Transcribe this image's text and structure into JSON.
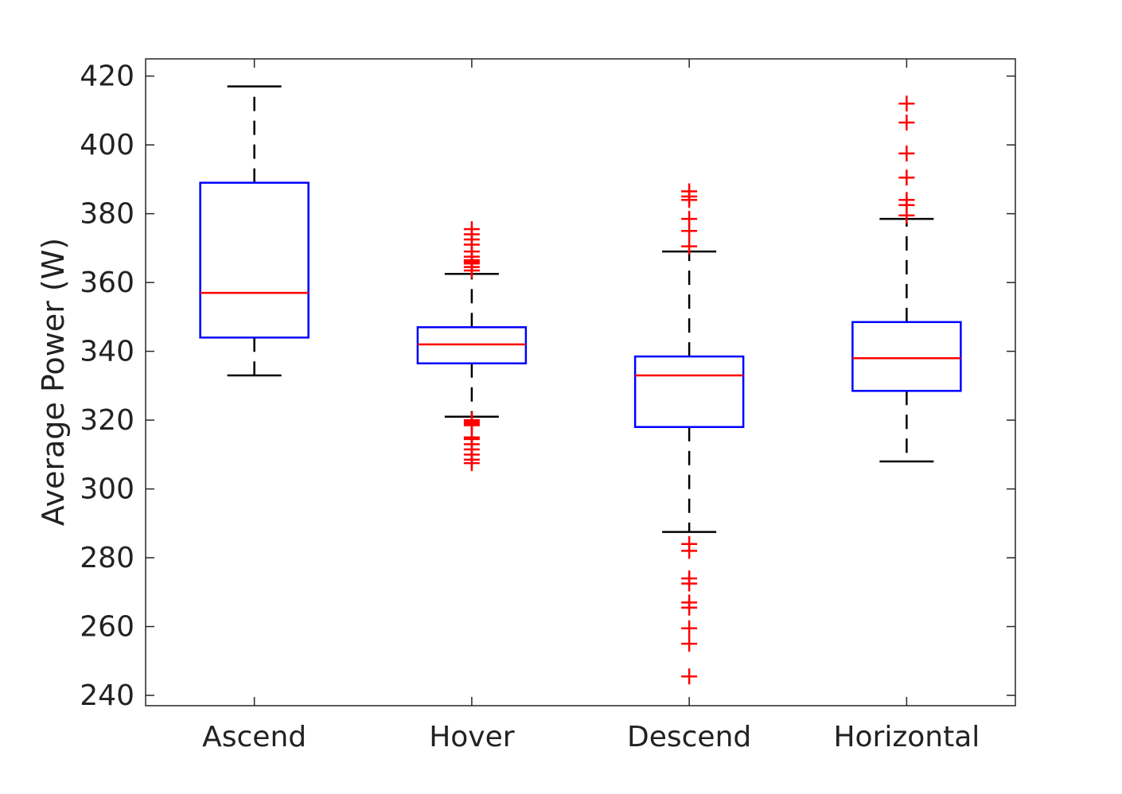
{
  "chart_data": {
    "type": "box",
    "title": "",
    "xlabel": "",
    "ylabel": "Average Power (W)",
    "ylim": [
      237,
      425
    ],
    "yticks": [
      240,
      260,
      280,
      300,
      320,
      340,
      360,
      380,
      400,
      420
    ],
    "grid": false,
    "categories": [
      "Ascend",
      "Hover",
      "Descend",
      "Horizontal"
    ],
    "boxes": [
      {
        "name": "Ascend",
        "whisker_low": 333,
        "q1": 344,
        "median": 357,
        "q3": 389,
        "whisker_high": 417,
        "outliers": []
      },
      {
        "name": "Hover",
        "whisker_low": 321,
        "q1": 336.5,
        "median": 342,
        "q3": 347,
        "whisker_high": 362.5,
        "outliers": [
          375.5,
          374,
          372.5,
          371,
          369,
          367.5,
          366.5,
          366,
          365.5,
          364.5,
          363.5,
          320,
          319.5,
          319,
          318.5,
          315,
          314.5,
          313,
          311.5,
          310,
          308.5,
          307.5
        ]
      },
      {
        "name": "Descend",
        "whisker_low": 287.5,
        "q1": 318,
        "median": 333,
        "q3": 338.5,
        "whisker_high": 369,
        "outliers": [
          386.5,
          385,
          384,
          378.5,
          375,
          370.5,
          284,
          282,
          274,
          272.5,
          267,
          265.5,
          259.5,
          255,
          245.5
        ]
      },
      {
        "name": "Horizontal",
        "whisker_low": 308,
        "q1": 328.5,
        "median": 338,
        "q3": 348.5,
        "whisker_high": 378.5,
        "outliers": [
          412,
          406.5,
          397.5,
          390.5,
          384,
          382.5,
          379.5
        ]
      }
    ],
    "colors": {
      "box": "#0000ff",
      "median": "#ff0000",
      "whisker": "#000000",
      "outlier": "#ff0000"
    }
  }
}
